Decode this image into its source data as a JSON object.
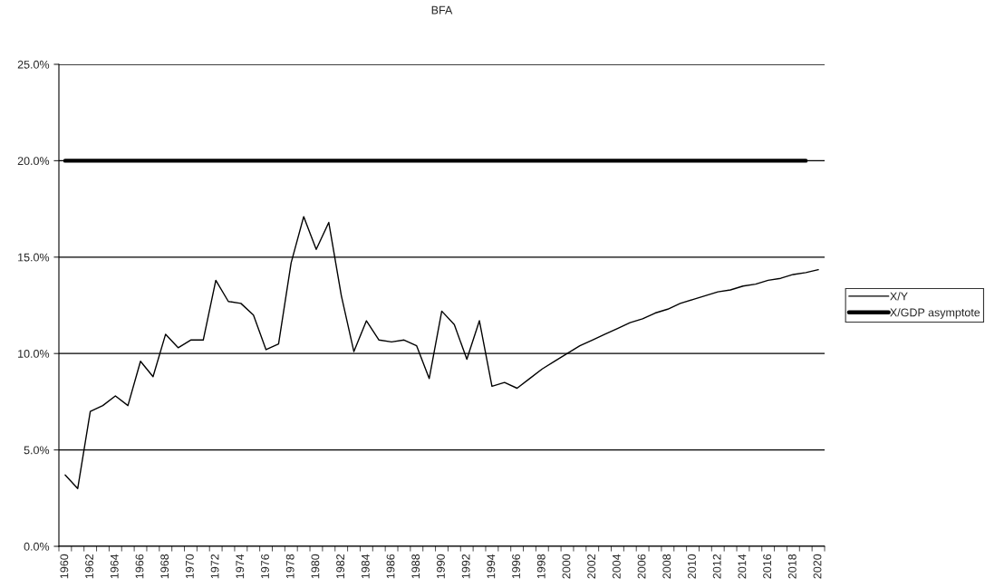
{
  "chart_data": {
    "type": "line",
    "title": "BFA",
    "categories": [
      "1960",
      null,
      "1962",
      null,
      "1964",
      null,
      "1966",
      null,
      "1968",
      null,
      "1970",
      null,
      "1972",
      null,
      "1974",
      null,
      "1976",
      null,
      "1978",
      null,
      "1980",
      null,
      "1982",
      null,
      "1984",
      null,
      "1986",
      null,
      "1988",
      null,
      "1990",
      null,
      "1992",
      null,
      "1994",
      null,
      "1996",
      null,
      "1998",
      null,
      "2000",
      null,
      "2002",
      null,
      "2004",
      null,
      "2006",
      null,
      "2008",
      null,
      "2010",
      null,
      "2012",
      null,
      "2014",
      null,
      "2016",
      null,
      "2018",
      null,
      "2020"
    ],
    "series": [
      {
        "name": "X/Y",
        "color": "#000000",
        "values": [
          3.7,
          3.0,
          7.0,
          7.3,
          7.8,
          7.3,
          9.6,
          8.8,
          11.0,
          10.3,
          10.7,
          10.7,
          13.8,
          12.7,
          12.6,
          12.0,
          10.2,
          10.5,
          14.7,
          17.1,
          15.4,
          16.8,
          13.0,
          10.1,
          11.7,
          10.7,
          10.6,
          10.7,
          10.4,
          8.7,
          12.2,
          11.5,
          9.7,
          11.7,
          8.3,
          8.5,
          8.2,
          8.7,
          9.2,
          9.6,
          10.0,
          10.4,
          10.7,
          11.0,
          11.3,
          11.6,
          11.8,
          12.1,
          12.3,
          12.6,
          12.8,
          13.0,
          13.2,
          13.3,
          13.5,
          13.6,
          13.8,
          13.9,
          14.1,
          14.2,
          14.35
        ]
      },
      {
        "name": "X/GDP asymptote",
        "color": "#000000",
        "values": [
          20,
          20,
          20,
          20,
          20,
          20,
          20,
          20,
          20,
          20,
          20,
          20,
          20,
          20,
          20,
          20,
          20,
          20,
          20,
          20,
          20,
          20,
          20,
          20,
          20,
          20,
          20,
          20,
          20,
          20,
          20,
          20,
          20,
          20,
          20,
          20,
          20,
          20,
          20,
          20,
          20,
          20,
          20,
          20,
          20,
          20,
          20,
          20,
          20,
          20,
          20,
          20,
          20,
          20,
          20,
          20,
          20,
          20,
          20,
          20,
          null
        ]
      }
    ],
    "ylim": [
      0,
      25
    ],
    "yticks": [
      {
        "value": 0,
        "label": "0.0%"
      },
      {
        "value": 5,
        "label": "5.0%"
      },
      {
        "value": 10,
        "label": "10.0%"
      },
      {
        "value": 15,
        "label": "15.0%"
      },
      {
        "value": 20,
        "label": "20.0%"
      },
      {
        "value": 25,
        "label": "25.0%"
      }
    ],
    "grid": "y",
    "legend": "right",
    "marker": "none",
    "line_style": "solid"
  }
}
